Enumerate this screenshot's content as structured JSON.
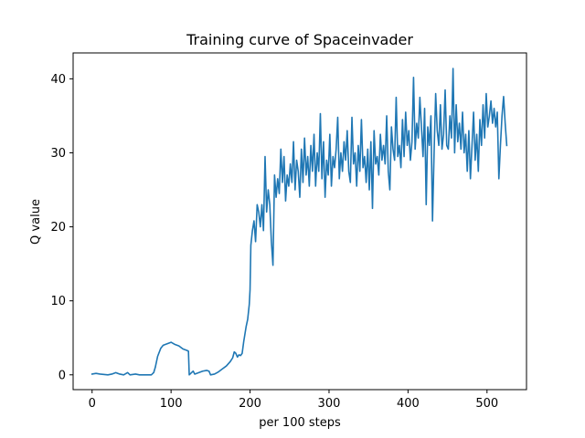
{
  "chart_data": {
    "type": "line",
    "title": "Training curve of Spaceinvader",
    "xlabel": "per 100 steps",
    "ylabel": "Q value",
    "xlim": [
      -24,
      550
    ],
    "ylim": [
      -2,
      43.5
    ],
    "xticks": [
      0,
      100,
      200,
      300,
      400,
      500
    ],
    "yticks": [
      0,
      10,
      20,
      30,
      40
    ],
    "grid": false,
    "legend": "none",
    "series": [
      {
        "color": "#1f77b4",
        "points": [
          [
            0,
            0.1
          ],
          [
            5,
            0.2
          ],
          [
            10,
            0.1
          ],
          [
            20,
            0.0
          ],
          [
            25,
            0.1
          ],
          [
            30,
            0.3
          ],
          [
            35,
            0.1
          ],
          [
            40,
            0.0
          ],
          [
            45,
            0.3
          ],
          [
            48,
            0.0
          ],
          [
            55,
            0.1
          ],
          [
            60,
            0.0
          ],
          [
            70,
            0.0
          ],
          [
            75,
            0.0
          ],
          [
            78,
            0.3
          ],
          [
            80,
            1.0
          ],
          [
            83,
            2.5
          ],
          [
            87,
            3.6
          ],
          [
            90,
            4.0
          ],
          [
            95,
            4.2
          ],
          [
            100,
            4.4
          ],
          [
            105,
            4.1
          ],
          [
            110,
            3.9
          ],
          [
            115,
            3.5
          ],
          [
            120,
            3.3
          ],
          [
            122,
            3.2
          ],
          [
            123,
            0.0
          ],
          [
            126,
            0.3
          ],
          [
            128,
            0.5
          ],
          [
            130,
            0.1
          ],
          [
            135,
            0.3
          ],
          [
            140,
            0.5
          ],
          [
            145,
            0.6
          ],
          [
            148,
            0.5
          ],
          [
            150,
            0.0
          ],
          [
            155,
            0.1
          ],
          [
            160,
            0.4
          ],
          [
            165,
            0.8
          ],
          [
            170,
            1.2
          ],
          [
            175,
            1.8
          ],
          [
            178,
            2.3
          ],
          [
            180,
            3.1
          ],
          [
            182,
            2.9
          ],
          [
            184,
            2.4
          ],
          [
            186,
            2.7
          ],
          [
            188,
            2.6
          ],
          [
            190,
            2.9
          ],
          [
            192,
            4.5
          ],
          [
            195,
            6.5
          ],
          [
            197,
            7.5
          ],
          [
            199,
            9.5
          ],
          [
            200,
            11.5
          ],
          [
            201,
            17.5
          ],
          [
            203,
            19.5
          ],
          [
            205,
            20.8
          ],
          [
            207,
            18.0
          ],
          [
            209,
            23.0
          ],
          [
            211,
            22.0
          ],
          [
            213,
            20.0
          ],
          [
            215,
            23.0
          ],
          [
            217,
            19.5
          ],
          [
            219,
            29.5
          ],
          [
            221,
            22.0
          ],
          [
            223,
            25.0
          ],
          [
            225,
            23.0
          ],
          [
            227,
            18.0
          ],
          [
            229,
            14.8
          ],
          [
            231,
            27.0
          ],
          [
            233,
            24.0
          ],
          [
            235,
            26.5
          ],
          [
            237,
            24.5
          ],
          [
            239,
            30.5
          ],
          [
            241,
            26.0
          ],
          [
            243,
            29.5
          ],
          [
            245,
            23.5
          ],
          [
            247,
            27.0
          ],
          [
            249,
            25.5
          ],
          [
            251,
            28.5
          ],
          [
            253,
            26.0
          ],
          [
            255,
            31.5
          ],
          [
            257,
            25.0
          ],
          [
            259,
            29.0
          ],
          [
            261,
            27.5
          ],
          [
            263,
            24.0
          ],
          [
            265,
            30.5
          ],
          [
            267,
            26.0
          ],
          [
            269,
            32.0
          ],
          [
            271,
            27.0
          ],
          [
            273,
            29.5
          ],
          [
            275,
            25.5
          ],
          [
            277,
            31.0
          ],
          [
            279,
            27.5
          ],
          [
            281,
            32.5
          ],
          [
            283,
            25.5
          ],
          [
            285,
            30.0
          ],
          [
            287,
            27.5
          ],
          [
            289,
            35.3
          ],
          [
            291,
            26.5
          ],
          [
            293,
            31.5
          ],
          [
            295,
            24.0
          ],
          [
            297,
            29.0
          ],
          [
            299,
            27.0
          ],
          [
            301,
            32.5
          ],
          [
            303,
            25.5
          ],
          [
            305,
            29.5
          ],
          [
            307,
            28.0
          ],
          [
            309,
            30.5
          ],
          [
            311,
            34.8
          ],
          [
            313,
            26.5
          ],
          [
            315,
            30.0
          ],
          [
            317,
            27.5
          ],
          [
            319,
            31.5
          ],
          [
            321,
            29.0
          ],
          [
            323,
            33.0
          ],
          [
            325,
            27.5
          ],
          [
            327,
            26.0
          ],
          [
            329,
            34.8
          ],
          [
            331,
            28.5
          ],
          [
            333,
            30.0
          ],
          [
            335,
            25.5
          ],
          [
            337,
            31.0
          ],
          [
            339,
            27.5
          ],
          [
            341,
            34.5
          ],
          [
            343,
            28.0
          ],
          [
            345,
            29.5
          ],
          [
            347,
            26.0
          ],
          [
            349,
            30.5
          ],
          [
            351,
            25.0
          ],
          [
            353,
            31.5
          ],
          [
            355,
            22.5
          ],
          [
            357,
            33.0
          ],
          [
            359,
            28.5
          ],
          [
            361,
            29.5
          ],
          [
            363,
            27.0
          ],
          [
            365,
            32.5
          ],
          [
            367,
            29.0
          ],
          [
            369,
            31.0
          ],
          [
            371,
            28.5
          ],
          [
            373,
            35.0
          ],
          [
            375,
            27.5
          ],
          [
            377,
            25.0
          ],
          [
            379,
            33.5
          ],
          [
            381,
            30.5
          ],
          [
            383,
            29.0
          ],
          [
            385,
            37.5
          ],
          [
            387,
            29.5
          ],
          [
            389,
            31.0
          ],
          [
            391,
            28.0
          ],
          [
            393,
            34.5
          ],
          [
            395,
            29.5
          ],
          [
            397,
            35.5
          ],
          [
            399,
            31.0
          ],
          [
            401,
            33.0
          ],
          [
            403,
            29.0
          ],
          [
            405,
            31.5
          ],
          [
            407,
            40.2
          ],
          [
            409,
            30.5
          ],
          [
            411,
            34.0
          ],
          [
            413,
            32.0
          ],
          [
            415,
            37.5
          ],
          [
            417,
            33.5
          ],
          [
            419,
            29.5
          ],
          [
            421,
            36.0
          ],
          [
            423,
            23.0
          ],
          [
            425,
            33.5
          ],
          [
            427,
            31.0
          ],
          [
            429,
            35.0
          ],
          [
            431,
            20.8
          ],
          [
            433,
            30.0
          ],
          [
            435,
            38.0
          ],
          [
            437,
            33.0
          ],
          [
            439,
            31.0
          ],
          [
            441,
            36.5
          ],
          [
            443,
            30.5
          ],
          [
            445,
            32.5
          ],
          [
            447,
            38.5
          ],
          [
            449,
            31.0
          ],
          [
            451,
            30.5
          ],
          [
            453,
            35.0
          ],
          [
            455,
            32.0
          ],
          [
            457,
            41.4
          ],
          [
            459,
            30.0
          ],
          [
            461,
            36.5
          ],
          [
            463,
            31.5
          ],
          [
            465,
            34.0
          ],
          [
            467,
            30.5
          ],
          [
            469,
            35.5
          ],
          [
            471,
            30.0
          ],
          [
            473,
            32.5
          ],
          [
            475,
            27.5
          ],
          [
            477,
            33.0
          ],
          [
            479,
            26.5
          ],
          [
            481,
            31.0
          ],
          [
            483,
            35.5
          ],
          [
            485,
            29.0
          ],
          [
            487,
            32.5
          ],
          [
            489,
            27.5
          ],
          [
            491,
            34.5
          ],
          [
            493,
            31.0
          ],
          [
            495,
            36.5
          ],
          [
            497,
            32.0
          ],
          [
            499,
            38.0
          ],
          [
            501,
            33.5
          ],
          [
            503,
            35.0
          ],
          [
            505,
            37.0
          ],
          [
            507,
            34.0
          ],
          [
            509,
            36.0
          ],
          [
            511,
            33.5
          ],
          [
            513,
            35.5
          ],
          [
            515,
            26.5
          ],
          [
            517,
            31.0
          ],
          [
            519,
            35.0
          ],
          [
            521,
            37.6
          ],
          [
            523,
            34.0
          ],
          [
            525,
            31.0
          ]
        ]
      }
    ]
  }
}
